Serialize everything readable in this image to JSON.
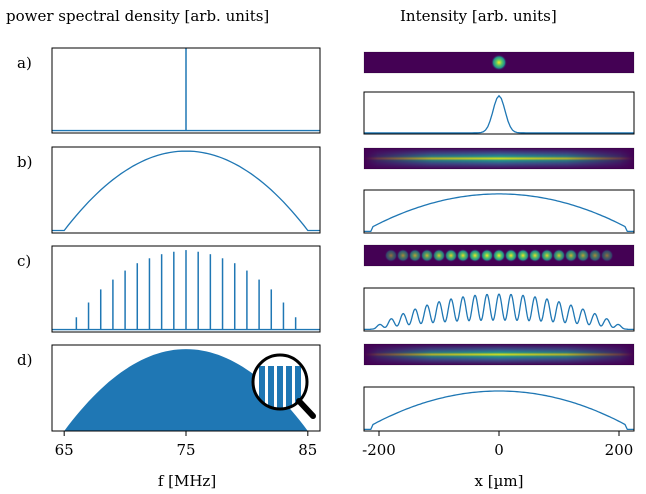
{
  "figure": {
    "left_title": "power spectral density [arb. units]",
    "right_title": "Intensity [arb. units]",
    "xlabel_left": "f [MHz]",
    "xlabel_right": "x [µm]",
    "colors": {
      "line": "#1f77b4",
      "fill": "#1f77b4",
      "image_background": "#440154"
    }
  },
  "chart_data": [
    {
      "id": "a",
      "panel_label": "a)",
      "side": "spectrum",
      "type": "line",
      "xlim": [
        64,
        86
      ],
      "ylim": [
        0,
        1.05
      ],
      "description": "single sharp spectral line",
      "lines_x": [
        75
      ],
      "lines_y": [
        1.0
      ],
      "baseline": 0.03
    },
    {
      "id": "b",
      "panel_label": "b)",
      "side": "spectrum",
      "type": "line",
      "xlim": [
        64,
        86
      ],
      "ylim": [
        0,
        1.05
      ],
      "x": [
        64,
        65,
        67,
        69,
        71,
        73,
        75,
        77,
        79,
        81,
        83,
        85,
        86
      ],
      "y": [
        0.03,
        0.03,
        0.36,
        0.62,
        0.82,
        0.95,
        1.0,
        0.95,
        0.82,
        0.62,
        0.36,
        0.03,
        0.03
      ]
    },
    {
      "id": "c",
      "panel_label": "c)",
      "side": "spectrum",
      "type": "bar",
      "xlim": [
        64,
        86
      ],
      "ylim": [
        0,
        1.05
      ],
      "baseline": 0.03,
      "lines_x": [
        66,
        67,
        68,
        69,
        70,
        71,
        72,
        73,
        74,
        75,
        76,
        77,
        78,
        79,
        80,
        81,
        82,
        83,
        84
      ],
      "lines_y": [
        0.18,
        0.36,
        0.52,
        0.64,
        0.75,
        0.84,
        0.9,
        0.95,
        0.98,
        1.0,
        0.98,
        0.95,
        0.9,
        0.84,
        0.75,
        0.64,
        0.52,
        0.36,
        0.18
      ]
    },
    {
      "id": "d",
      "panel_label": "d)",
      "side": "spectrum",
      "type": "area",
      "xlim": [
        64,
        86
      ],
      "ylim": [
        0,
        1.05
      ],
      "x": [
        65,
        67,
        69,
        71,
        73,
        75,
        77,
        79,
        81,
        83,
        85
      ],
      "y": [
        0.0,
        0.36,
        0.62,
        0.82,
        0.95,
        1.0,
        0.95,
        0.82,
        0.62,
        0.36,
        0.0
      ],
      "inset": "magnifier-icon",
      "xticks": [
        65,
        75,
        85
      ]
    },
    {
      "id": "a_int",
      "side": "intensity",
      "type": "heatmap+line",
      "xlim": [
        -225,
        225
      ],
      "ylim": [
        0,
        1.1
      ],
      "image": "single-spot",
      "x": [
        -225,
        -40,
        -20,
        -10,
        0,
        10,
        20,
        40,
        225
      ],
      "y": [
        0.03,
        0.03,
        0.15,
        0.6,
        1.0,
        0.6,
        0.15,
        0.03,
        0.03
      ]
    },
    {
      "id": "b_int",
      "side": "intensity",
      "type": "heatmap+line",
      "xlim": [
        -225,
        225
      ],
      "ylim": [
        0,
        1.1
      ],
      "image": "smooth-line",
      "x": [
        -225,
        -215,
        -200,
        -150,
        -100,
        -50,
        0,
        50,
        100,
        150,
        200,
        215,
        225
      ],
      "y": [
        0.04,
        0.04,
        0.28,
        0.58,
        0.8,
        0.95,
        1.0,
        0.95,
        0.8,
        0.58,
        0.28,
        0.04,
        0.04
      ]
    },
    {
      "id": "c_int",
      "side": "intensity",
      "type": "heatmap+line",
      "xlim": [
        -225,
        225
      ],
      "ylim": [
        0,
        1.1
      ],
      "image": "spot-array",
      "spots": 19,
      "description": "fringe pattern of discrete spots",
      "xticks": [
        -200,
        0,
        200
      ]
    },
    {
      "id": "d_int",
      "side": "intensity",
      "type": "heatmap+line",
      "xlim": [
        -225,
        225
      ],
      "ylim": [
        0,
        1.1
      ],
      "image": "smooth-line",
      "x": [
        -225,
        -215,
        -200,
        -150,
        -100,
        -50,
        0,
        50,
        100,
        150,
        200,
        215,
        225
      ],
      "y": [
        0.04,
        0.04,
        0.28,
        0.58,
        0.8,
        0.95,
        1.0,
        0.95,
        0.8,
        0.58,
        0.28,
        0.04,
        0.04
      ],
      "xticks": [
        -200,
        0,
        200
      ]
    }
  ]
}
